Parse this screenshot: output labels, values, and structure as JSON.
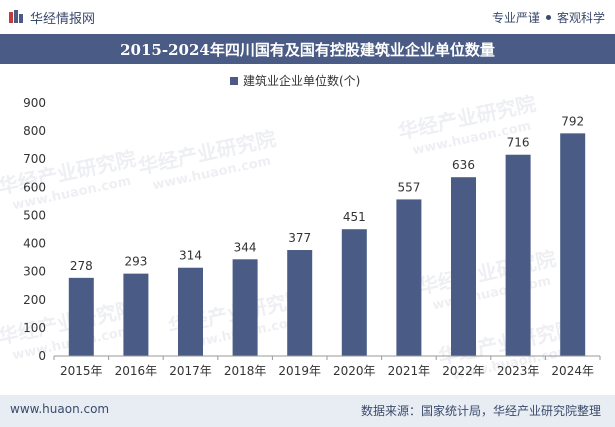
{
  "header": {
    "brand_name": "华经情报网",
    "slogan_left": "专业严谨",
    "slogan_right": "客观科学"
  },
  "title": "2015-2024年四川国有及国有控股建筑业企业单位数量",
  "footer": {
    "url": "www.huaon.com",
    "source": "数据来源：国家统计局，华经产业研究院整理"
  },
  "watermark": {
    "cn": "华经产业研究院",
    "url": "www.huaon.com"
  },
  "colors": {
    "bar": "#4a5b85",
    "title_bg": "#4a5b85",
    "footer_bg": "#e8edf3",
    "axis_text": "#333333"
  },
  "chart_data": {
    "type": "bar",
    "categories": [
      "2015年",
      "2016年",
      "2017年",
      "2018年",
      "2019年",
      "2020年",
      "2021年",
      "2022年",
      "2023年",
      "2024年"
    ],
    "series": [
      {
        "name": "建筑业企业单位数(个)",
        "values": [
          278,
          293,
          314,
          344,
          377,
          451,
          557,
          636,
          716,
          792
        ]
      }
    ],
    "ylim": [
      0,
      900
    ],
    "yticks": [
      0,
      100,
      200,
      300,
      400,
      500,
      600,
      700,
      800,
      900
    ],
    "legend_position": "top-center",
    "grid": false
  }
}
